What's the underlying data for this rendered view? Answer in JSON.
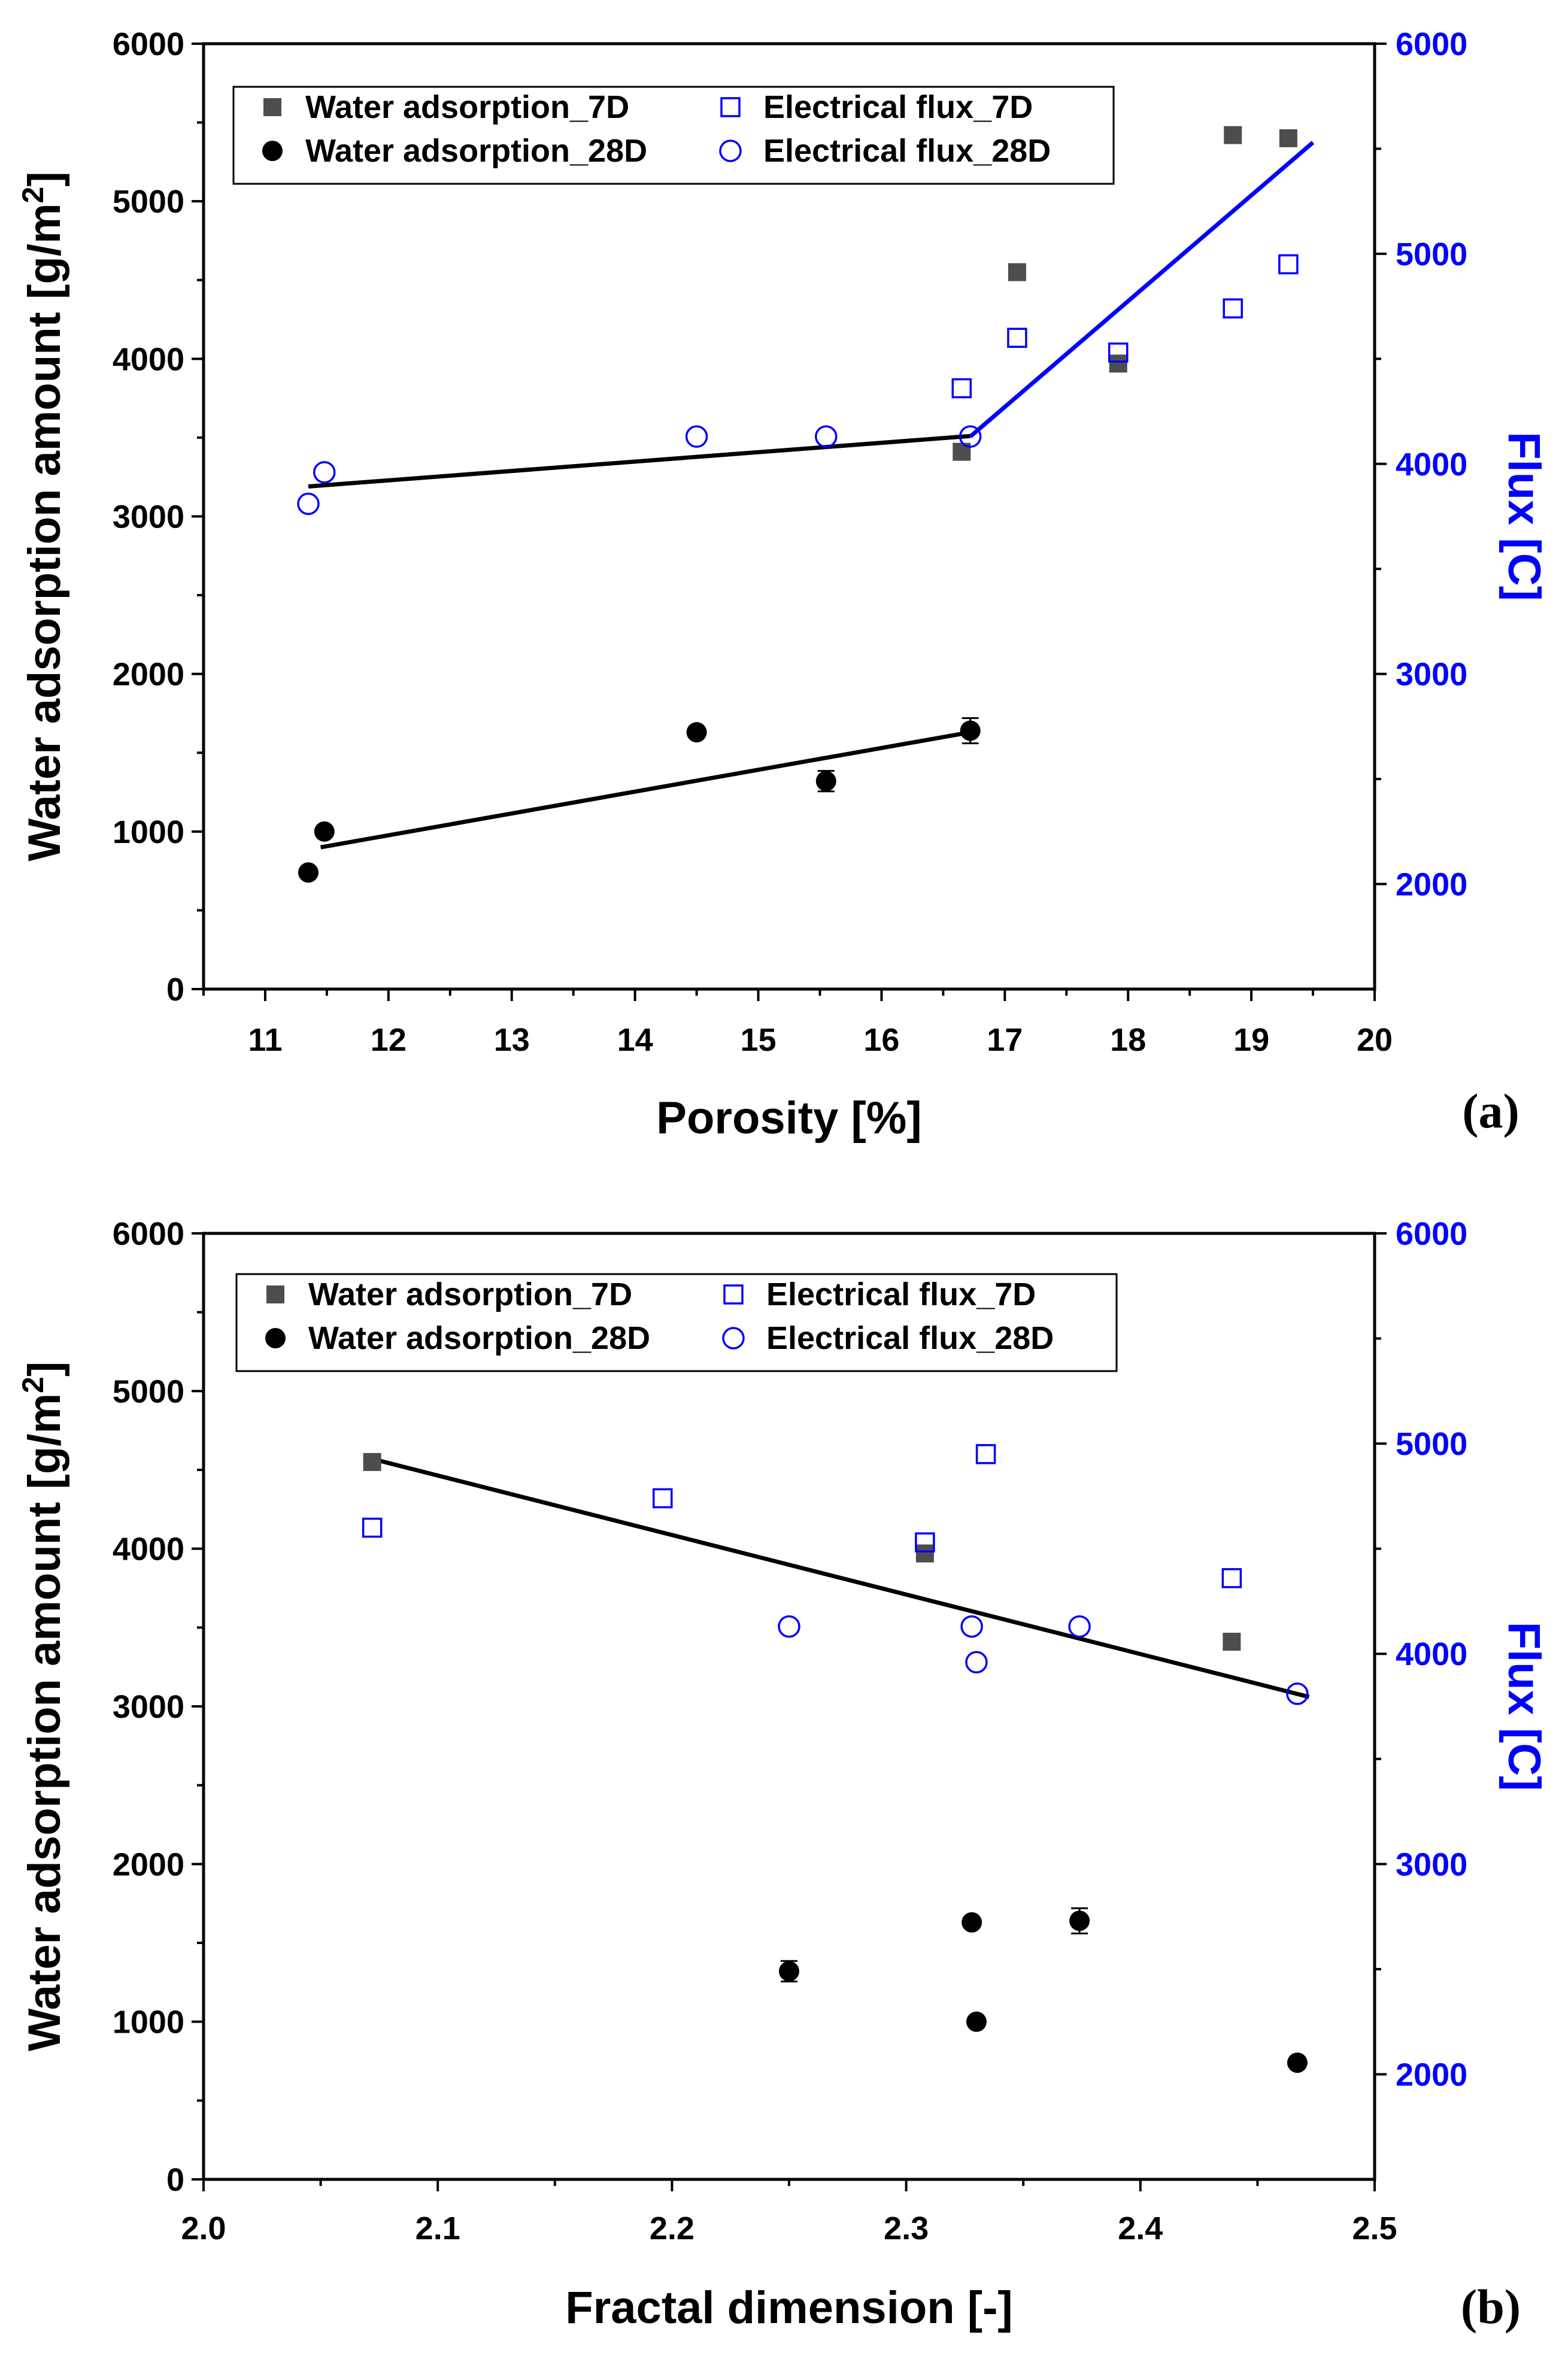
{
  "colors": {
    "black_series": "#000000",
    "gray_series": "#4d4d4d",
    "blue_series": "#0000ff",
    "axis": "#000000"
  },
  "chart_data": [
    {
      "panel_label": "(a)",
      "type": "scatter",
      "xlabel": "Porosity [%]",
      "ylabel": "Water adsorption amount [g/m",
      "ylabel_sup": "2",
      "ylabel_close": "]",
      "y2label": "Flux [C]",
      "xlim": [
        10.5,
        20
      ],
      "ylim": [
        0,
        6000
      ],
      "y2lim": [
        1500,
        6000
      ],
      "xticks": [
        11,
        12,
        13,
        14,
        15,
        16,
        17,
        18,
        19,
        20
      ],
      "yticks": [
        0,
        1000,
        2000,
        3000,
        4000,
        5000,
        6000
      ],
      "y2ticks": [
        2000,
        3000,
        4000,
        5000,
        6000
      ],
      "legend_position": "top-left",
      "series": [
        {
          "name": "Water adsorption_7D",
          "marker": "square-filled",
          "axis": "left",
          "x": [
            16.65,
            17.1,
            17.92,
            18.85,
            19.3
          ],
          "y": [
            3410,
            4550,
            3970,
            5420,
            5400
          ]
        },
        {
          "name": "Water adsorption_28D",
          "marker": "circle-filled",
          "axis": "left",
          "x": [
            11.35,
            11.48,
            14.5,
            15.55,
            16.72
          ],
          "y": [
            740,
            1000,
            1630,
            1320,
            1640
          ],
          "yerr": [
            0,
            0,
            0,
            65,
            80
          ]
        },
        {
          "name": "Electrical flux_7D",
          "marker": "square-open",
          "axis": "right",
          "x": [
            16.65,
            17.1,
            17.92,
            18.85,
            19.3
          ],
          "y": [
            4360,
            4600,
            4530,
            4740,
            4950
          ]
        },
        {
          "name": "Electrical flux_28D",
          "marker": "circle-open",
          "axis": "right",
          "x": [
            11.35,
            11.48,
            14.5,
            15.55,
            16.72
          ],
          "y": [
            3810,
            3960,
            4130,
            4130,
            4130
          ]
        }
      ],
      "fit_lines": [
        {
          "axis": "left",
          "color": "black",
          "x": [
            11.35,
            16.72
          ],
          "y": [
            3190,
            3510
          ]
        },
        {
          "axis": "left",
          "color": "black",
          "x": [
            11.45,
            16.72
          ],
          "y": [
            900,
            1630
          ]
        },
        {
          "axis": "right",
          "color": "blue",
          "x": [
            16.72,
            19.5
          ],
          "y": [
            4130,
            5530
          ]
        }
      ]
    },
    {
      "panel_label": "(b)",
      "type": "scatter",
      "xlabel": "Fractal dimension [-]",
      "ylabel": "Water adsorption amount [g/m",
      "ylabel_sup": "2",
      "ylabel_close": "]",
      "y2label": "Flux [C]",
      "xlim": [
        2.0,
        2.5
      ],
      "ylim": [
        0,
        6000
      ],
      "y2lim": [
        1500,
        6000
      ],
      "xticks": [
        2.0,
        2.1,
        2.2,
        2.3,
        2.4,
        2.5
      ],
      "xtick_labels": [
        "2.0",
        "2.1",
        "2.2",
        "2.3",
        "2.4",
        "2.5"
      ],
      "yticks": [
        0,
        1000,
        2000,
        3000,
        4000,
        5000,
        6000
      ],
      "y2ticks": [
        2000,
        3000,
        4000,
        5000,
        6000
      ],
      "legend_position": "top-left",
      "series": [
        {
          "name": "Water adsorption_7D",
          "marker": "square-filled",
          "axis": "left",
          "x": [
            2.072,
            2.308,
            2.439
          ],
          "y": [
            4550,
            3970,
            3410
          ]
        },
        {
          "name": "Water adsorption_28D",
          "marker": "circle-filled",
          "axis": "left",
          "x": [
            2.25,
            2.328,
            2.33,
            2.374,
            2.467
          ],
          "y": [
            1320,
            1630,
            1000,
            1640,
            740
          ],
          "yerr": [
            65,
            0,
            0,
            80,
            0
          ]
        },
        {
          "name": "Electrical flux_7D",
          "marker": "square-open",
          "axis": "right",
          "x": [
            2.072,
            2.196,
            2.308,
            2.334,
            2.439
          ],
          "y": [
            4600,
            4740,
            4530,
            4950,
            4360
          ]
        },
        {
          "name": "Electrical flux_28D",
          "marker": "circle-open",
          "axis": "right",
          "x": [
            2.25,
            2.328,
            2.33,
            2.374,
            2.467
          ],
          "y": [
            4130,
            4130,
            3960,
            4130,
            3810
          ]
        }
      ],
      "fit_lines": [
        {
          "axis": "left",
          "color": "black",
          "x": [
            2.072,
            2.472
          ],
          "y": [
            4570,
            3060
          ]
        }
      ]
    }
  ]
}
